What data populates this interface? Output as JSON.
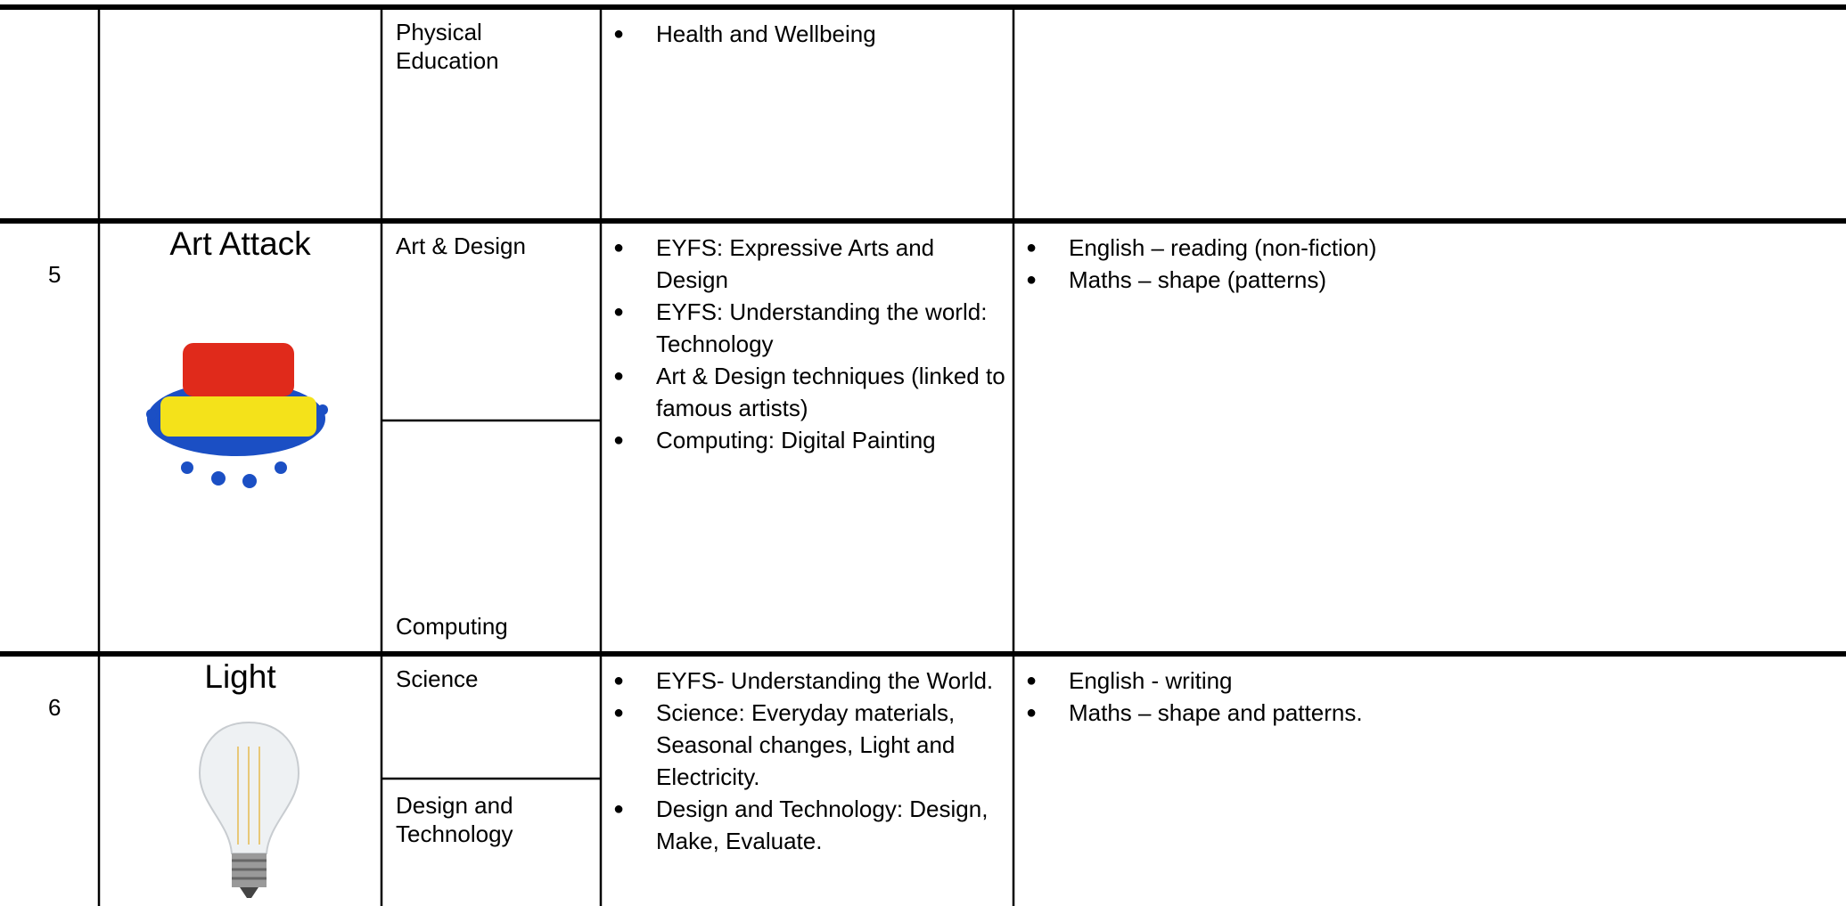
{
  "table": {
    "rows": [
      {
        "number": null,
        "topic": null,
        "subjects": [
          "Physical Education"
        ],
        "objectives": [
          "Health and Wellbeing"
        ],
        "links": []
      },
      {
        "number": "5",
        "topic": "Art Attack",
        "subjects": [
          "Art & Design",
          "Computing"
        ],
        "objectives": [
          "EYFS: Expressive Arts and Design",
          "EYFS: Understanding the world: Technology",
          "Art & Design techniques (linked to famous artists)",
          "Computing: Digital Painting"
        ],
        "links": [
          "English – reading (non-fiction)",
          "Maths – shape (patterns)"
        ]
      },
      {
        "number": "6",
        "topic": "Light",
        "subjects": [
          "Science",
          "Design and Technology"
        ],
        "objectives": [
          "EYFS- Understanding the World.",
          "Science: Everyday materials, Seasonal changes, Light and Electricity.",
          " Design and Technology: Design, Make, Evaluate."
        ],
        "links": [
          "English - writing",
          "Maths – shape and patterns."
        ]
      }
    ]
  }
}
